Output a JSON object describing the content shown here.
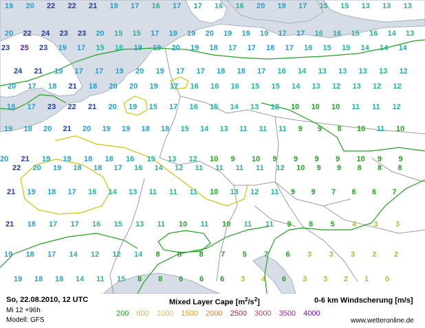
{
  "map": {
    "colors": {
      "water": "#d6dde6",
      "land": "#ffffff",
      "border": "#9b9b9b",
      "coast": "#a8b2bf",
      "cape_200": "#1fa31f",
      "cape_600": "#c8c800"
    },
    "wind_shear_values": [
      {
        "v": "19",
        "c": "#24a0c8"
      },
      {
        "v": "20",
        "c": "#24a0c8"
      },
      {
        "v": "22",
        "c": "#1e3ca8"
      },
      {
        "v": "22",
        "c": "#1e3ca8"
      },
      {
        "v": "21",
        "c": "#1e3ca8"
      },
      {
        "v": "19",
        "c": "#24a0c8"
      },
      {
        "v": "17",
        "c": "#24a0c8"
      },
      {
        "v": "16",
        "c": "#22b4a0"
      },
      {
        "v": "17",
        "c": "#24a0c8"
      },
      {
        "v": "17",
        "c": "#24a0c8"
      },
      {
        "v": "16",
        "c": "#22b4a0"
      },
      {
        "v": "16",
        "c": "#22b4a0"
      },
      {
        "v": "20",
        "c": "#24a0c8"
      },
      {
        "v": "19",
        "c": "#24a0c8"
      },
      {
        "v": "17",
        "c": "#24a0c8"
      },
      {
        "v": "15",
        "c": "#22b4a0"
      },
      {
        "v": "15",
        "c": "#22b4a0"
      },
      {
        "v": "13",
        "c": "#22b4a0"
      },
      {
        "v": "13",
        "c": "#22b4a0"
      },
      {
        "v": "13",
        "c": "#22b4a0"
      },
      {
        "v": "20",
        "c": "#24a0c8"
      },
      {
        "v": "22",
        "c": "#1e3ca8"
      },
      {
        "v": "24",
        "c": "#1e3ca8"
      },
      {
        "v": "23",
        "c": "#1e3ca8"
      },
      {
        "v": "23",
        "c": "#1e3ca8"
      },
      {
        "v": "20",
        "c": "#24a0c8"
      },
      {
        "v": "15",
        "c": "#22b4a0"
      },
      {
        "v": "15",
        "c": "#22b4a0"
      },
      {
        "v": "17",
        "c": "#24a0c8"
      },
      {
        "v": "19",
        "c": "#24a0c8"
      },
      {
        "v": "19",
        "c": "#24a0c8"
      },
      {
        "v": "20",
        "c": "#24a0c8"
      },
      {
        "v": "19",
        "c": "#24a0c8"
      },
      {
        "v": "19",
        "c": "#24a0c8"
      },
      {
        "v": "19",
        "c": "#24a0c8"
      },
      {
        "v": "17",
        "c": "#24a0c8"
      },
      {
        "v": "17",
        "c": "#24a0c8"
      },
      {
        "v": "16",
        "c": "#22b4a0"
      },
      {
        "v": "16",
        "c": "#22b4a0"
      },
      {
        "v": "15",
        "c": "#22b4a0"
      },
      {
        "v": "16",
        "c": "#22b4a0"
      },
      {
        "v": "14",
        "c": "#22b4a0"
      },
      {
        "v": "13",
        "c": "#22b4a0"
      },
      {
        "v": "23",
        "c": "#1e3ca8"
      },
      {
        "v": "25",
        "c": "#6a1f8a"
      },
      {
        "v": "23",
        "c": "#1e3ca8"
      },
      {
        "v": "19",
        "c": "#24a0c8"
      },
      {
        "v": "17",
        "c": "#24a0c8"
      },
      {
        "v": "15",
        "c": "#22b4a0"
      },
      {
        "v": "16",
        "c": "#22b4a0"
      },
      {
        "v": "19",
        "c": "#24a0c8"
      },
      {
        "v": "19",
        "c": "#24a0c8"
      },
      {
        "v": "20",
        "c": "#24a0c8"
      },
      {
        "v": "19",
        "c": "#24a0c8"
      },
      {
        "v": "18",
        "c": "#24a0c8"
      },
      {
        "v": "17",
        "c": "#24a0c8"
      },
      {
        "v": "17",
        "c": "#24a0c8"
      },
      {
        "v": "18",
        "c": "#24a0c8"
      },
      {
        "v": "17",
        "c": "#24a0c8"
      },
      {
        "v": "16",
        "c": "#22b4a0"
      },
      {
        "v": "15",
        "c": "#22b4a0"
      },
      {
        "v": "15",
        "c": "#22b4a0"
      },
      {
        "v": "14",
        "c": "#22b4a0"
      },
      {
        "v": "14",
        "c": "#22b4a0"
      },
      {
        "v": "14",
        "c": "#22b4a0"
      },
      {
        "v": "24",
        "c": "#1e3ca8"
      },
      {
        "v": "21",
        "c": "#1e3ca8"
      },
      {
        "v": "19",
        "c": "#24a0c8"
      },
      {
        "v": "17",
        "c": "#24a0c8"
      },
      {
        "v": "17",
        "c": "#24a0c8"
      },
      {
        "v": "19",
        "c": "#24a0c8"
      },
      {
        "v": "20",
        "c": "#24a0c8"
      },
      {
        "v": "19",
        "c": "#24a0c8"
      },
      {
        "v": "17",
        "c": "#24a0c8"
      },
      {
        "v": "17",
        "c": "#24a0c8"
      },
      {
        "v": "18",
        "c": "#24a0c8"
      },
      {
        "v": "18",
        "c": "#24a0c8"
      },
      {
        "v": "17",
        "c": "#24a0c8"
      },
      {
        "v": "16",
        "c": "#22b4a0"
      },
      {
        "v": "14",
        "c": "#22b4a0"
      },
      {
        "v": "13",
        "c": "#22b4a0"
      },
      {
        "v": "13",
        "c": "#22b4a0"
      },
      {
        "v": "13",
        "c": "#22b4a0"
      },
      {
        "v": "13",
        "c": "#22b4a0"
      },
      {
        "v": "12",
        "c": "#22b4a0"
      },
      {
        "v": "20",
        "c": "#24a0c8"
      },
      {
        "v": "17",
        "c": "#24a0c8"
      },
      {
        "v": "18",
        "c": "#24a0c8"
      },
      {
        "v": "21",
        "c": "#1e3ca8"
      },
      {
        "v": "18",
        "c": "#24a0c8"
      },
      {
        "v": "20",
        "c": "#24a0c8"
      },
      {
        "v": "20",
        "c": "#24a0c8"
      },
      {
        "v": "19",
        "c": "#24a0c8"
      },
      {
        "v": "17",
        "c": "#24a0c8"
      },
      {
        "v": "16",
        "c": "#22b4a0"
      },
      {
        "v": "16",
        "c": "#22b4a0"
      },
      {
        "v": "16",
        "c": "#22b4a0"
      },
      {
        "v": "15",
        "c": "#22b4a0"
      },
      {
        "v": "15",
        "c": "#22b4a0"
      },
      {
        "v": "14",
        "c": "#22b4a0"
      },
      {
        "v": "13",
        "c": "#22b4a0"
      },
      {
        "v": "12",
        "c": "#22b4a0"
      },
      {
        "v": "13",
        "c": "#22b4a0"
      },
      {
        "v": "12",
        "c": "#22b4a0"
      },
      {
        "v": "12",
        "c": "#22b4a0"
      },
      {
        "v": "18",
        "c": "#24a0c8"
      },
      {
        "v": "17",
        "c": "#24a0c8"
      },
      {
        "v": "23",
        "c": "#1e3ca8"
      },
      {
        "v": "22",
        "c": "#1e3ca8"
      },
      {
        "v": "21",
        "c": "#1e3ca8"
      },
      {
        "v": "20",
        "c": "#24a0c8"
      },
      {
        "v": "19",
        "c": "#24a0c8"
      },
      {
        "v": "15",
        "c": "#22b4a0"
      },
      {
        "v": "17",
        "c": "#24a0c8"
      },
      {
        "v": "16",
        "c": "#22b4a0"
      },
      {
        "v": "15",
        "c": "#22b4a0"
      },
      {
        "v": "14",
        "c": "#22b4a0"
      },
      {
        "v": "13",
        "c": "#22b4a0"
      },
      {
        "v": "12",
        "c": "#22b4a0"
      },
      {
        "v": "10",
        "c": "#1fa51f"
      },
      {
        "v": "10",
        "c": "#1fa51f"
      },
      {
        "v": "10",
        "c": "#1fa51f"
      },
      {
        "v": "11",
        "c": "#22b4a0"
      },
      {
        "v": "11",
        "c": "#22b4a0"
      },
      {
        "v": "12",
        "c": "#22b4a0"
      },
      {
        "v": "19",
        "c": "#24a0c8"
      },
      {
        "v": "18",
        "c": "#24a0c8"
      },
      {
        "v": "20",
        "c": "#24a0c8"
      },
      {
        "v": "21",
        "c": "#1e3ca8"
      },
      {
        "v": "20",
        "c": "#24a0c8"
      },
      {
        "v": "19",
        "c": "#24a0c8"
      },
      {
        "v": "19",
        "c": "#24a0c8"
      },
      {
        "v": "18",
        "c": "#24a0c8"
      },
      {
        "v": "18",
        "c": "#24a0c8"
      },
      {
        "v": "15",
        "c": "#22b4a0"
      },
      {
        "v": "14",
        "c": "#22b4a0"
      },
      {
        "v": "13",
        "c": "#22b4a0"
      },
      {
        "v": "11",
        "c": "#22b4a0"
      },
      {
        "v": "11",
        "c": "#22b4a0"
      },
      {
        "v": "11",
        "c": "#22b4a0"
      },
      {
        "v": "9",
        "c": "#1fa51f"
      },
      {
        "v": "9",
        "c": "#1fa51f"
      },
      {
        "v": "8",
        "c": "#1fa51f"
      },
      {
        "v": "10",
        "c": "#1fa51f"
      },
      {
        "v": "11",
        "c": "#22b4a0"
      },
      {
        "v": "10",
        "c": "#1fa51f"
      },
      {
        "v": "20",
        "c": "#24a0c8"
      },
      {
        "v": "21",
        "c": "#1e3ca8"
      },
      {
        "v": "19",
        "c": "#24a0c8"
      },
      {
        "v": "19",
        "c": "#24a0c8"
      },
      {
        "v": "18",
        "c": "#24a0c8"
      },
      {
        "v": "18",
        "c": "#24a0c8"
      },
      {
        "v": "16",
        "c": "#22b4a0"
      },
      {
        "v": "15",
        "c": "#22b4a0"
      },
      {
        "v": "13",
        "c": "#22b4a0"
      },
      {
        "v": "12",
        "c": "#22b4a0"
      },
      {
        "v": "10",
        "c": "#1fa51f"
      },
      {
        "v": "9",
        "c": "#1fa51f"
      },
      {
        "v": "10",
        "c": "#1fa51f"
      },
      {
        "v": "9",
        "c": "#1fa51f"
      },
      {
        "v": "9",
        "c": "#1fa51f"
      },
      {
        "v": "9",
        "c": "#1fa51f"
      },
      {
        "v": "9",
        "c": "#1fa51f"
      },
      {
        "v": "10",
        "c": "#1fa51f"
      },
      {
        "v": "9",
        "c": "#1fa51f"
      },
      {
        "v": "9",
        "c": "#1fa51f"
      },
      {
        "v": "22",
        "c": "#1e3ca8"
      },
      {
        "v": "20",
        "c": "#24a0c8"
      },
      {
        "v": "19",
        "c": "#24a0c8"
      },
      {
        "v": "18",
        "c": "#24a0c8"
      },
      {
        "v": "18",
        "c": "#24a0c8"
      },
      {
        "v": "17",
        "c": "#24a0c8"
      },
      {
        "v": "16",
        "c": "#22b4a0"
      },
      {
        "v": "14",
        "c": "#22b4a0"
      },
      {
        "v": "12",
        "c": "#22b4a0"
      },
      {
        "v": "11",
        "c": "#22b4a0"
      },
      {
        "v": "11",
        "c": "#22b4a0"
      },
      {
        "v": "11",
        "c": "#22b4a0"
      },
      {
        "v": "11",
        "c": "#22b4a0"
      },
      {
        "v": "12",
        "c": "#22b4a0"
      },
      {
        "v": "10",
        "c": "#1fa51f"
      },
      {
        "v": "9",
        "c": "#1fa51f"
      },
      {
        "v": "9",
        "c": "#1fa51f"
      },
      {
        "v": "8",
        "c": "#1fa51f"
      },
      {
        "v": "8",
        "c": "#1fa51f"
      },
      {
        "v": "8",
        "c": "#1fa51f"
      },
      {
        "v": "21",
        "c": "#1e3ca8"
      },
      {
        "v": "19",
        "c": "#24a0c8"
      },
      {
        "v": "18",
        "c": "#24a0c8"
      },
      {
        "v": "17",
        "c": "#24a0c8"
      },
      {
        "v": "16",
        "c": "#22b4a0"
      },
      {
        "v": "14",
        "c": "#22b4a0"
      },
      {
        "v": "13",
        "c": "#22b4a0"
      },
      {
        "v": "11",
        "c": "#22b4a0"
      },
      {
        "v": "11",
        "c": "#22b4a0"
      },
      {
        "v": "11",
        "c": "#22b4a0"
      },
      {
        "v": "10",
        "c": "#1fa51f"
      },
      {
        "v": "13",
        "c": "#22b4a0"
      },
      {
        "v": "12",
        "c": "#22b4a0"
      },
      {
        "v": "11",
        "c": "#22b4a0"
      },
      {
        "v": "9",
        "c": "#1fa51f"
      },
      {
        "v": "9",
        "c": "#1fa51f"
      },
      {
        "v": "7",
        "c": "#1fa51f"
      },
      {
        "v": "6",
        "c": "#1fa51f"
      },
      {
        "v": "6",
        "c": "#1fa51f"
      },
      {
        "v": "7",
        "c": "#1fa51f"
      },
      {
        "v": "21",
        "c": "#1e3ca8"
      },
      {
        "v": "18",
        "c": "#24a0c8"
      },
      {
        "v": "17",
        "c": "#24a0c8"
      },
      {
        "v": "17",
        "c": "#24a0c8"
      },
      {
        "v": "16",
        "c": "#22b4a0"
      },
      {
        "v": "15",
        "c": "#22b4a0"
      },
      {
        "v": "13",
        "c": "#22b4a0"
      },
      {
        "v": "11",
        "c": "#22b4a0"
      },
      {
        "v": "10",
        "c": "#1fa51f"
      },
      {
        "v": "11",
        "c": "#22b4a0"
      },
      {
        "v": "10",
        "c": "#1fa51f"
      },
      {
        "v": "11",
        "c": "#22b4a0"
      },
      {
        "v": "11",
        "c": "#22b4a0"
      },
      {
        "v": "9",
        "c": "#1fa51f"
      },
      {
        "v": "8",
        "c": "#1fa51f"
      },
      {
        "v": "5",
        "c": "#1fa51f"
      },
      {
        "v": "4",
        "c": "#b0c020"
      },
      {
        "v": "3",
        "c": "#b0c020"
      },
      {
        "v": "3",
        "c": "#b0c020"
      },
      {
        "v": "19",
        "c": "#24a0c8"
      },
      {
        "v": "18",
        "c": "#24a0c8"
      },
      {
        "v": "17",
        "c": "#24a0c8"
      },
      {
        "v": "14",
        "c": "#22b4a0"
      },
      {
        "v": "12",
        "c": "#22b4a0"
      },
      {
        "v": "12",
        "c": "#22b4a0"
      },
      {
        "v": "14",
        "c": "#22b4a0"
      },
      {
        "v": "8",
        "c": "#1fa51f"
      },
      {
        "v": "8",
        "c": "#1fa51f"
      },
      {
        "v": "8",
        "c": "#1fa51f"
      },
      {
        "v": "7",
        "c": "#1fa51f"
      },
      {
        "v": "5",
        "c": "#1fa51f"
      },
      {
        "v": "7",
        "c": "#1fa51f"
      },
      {
        "v": "6",
        "c": "#1fa51f"
      },
      {
        "v": "3",
        "c": "#b0c020"
      },
      {
        "v": "3",
        "c": "#b0c020"
      },
      {
        "v": "3",
        "c": "#b0c020"
      },
      {
        "v": "2",
        "c": "#b0c020"
      },
      {
        "v": "2",
        "c": "#b0c020"
      },
      {
        "v": "19",
        "c": "#24a0c8"
      },
      {
        "v": "18",
        "c": "#24a0c8"
      },
      {
        "v": "18",
        "c": "#24a0c8"
      },
      {
        "v": "14",
        "c": "#22b4a0"
      },
      {
        "v": "11",
        "c": "#22b4a0"
      },
      {
        "v": "15",
        "c": "#22b4a0"
      },
      {
        "v": "8",
        "c": "#1fa51f"
      },
      {
        "v": "8",
        "c": "#1fa51f"
      },
      {
        "v": "6",
        "c": "#1fa51f"
      },
      {
        "v": "6",
        "c": "#1fa51f"
      },
      {
        "v": "6",
        "c": "#1fa51f"
      },
      {
        "v": "3",
        "c": "#b0c020"
      },
      {
        "v": "4",
        "c": "#b0c020"
      },
      {
        "v": "6",
        "c": "#1fa51f"
      },
      {
        "v": "3",
        "c": "#b0c020"
      },
      {
        "v": "3",
        "c": "#b0c020"
      },
      {
        "v": "2",
        "c": "#b0c020"
      },
      {
        "v": "1",
        "c": "#b0c020"
      },
      {
        "v": "0",
        "c": "#b0c020"
      }
    ]
  },
  "footer": {
    "date": "So, 22.08.2010, 12 UTC",
    "run": "Mi 12 +96h",
    "model": "Modell: GFS",
    "cape_title_text": "Mixed Layer Cape [m",
    "cape_title_sup": "2",
    "cape_title_mid": "/s",
    "cape_title_sup2": "2",
    "cape_title_end": "]",
    "wind_title": "0-6 km Windscherung [m/s]",
    "credit": "www.wetteronline.de",
    "legend": [
      {
        "label": "200",
        "color": "#1fa31f"
      },
      {
        "label": "600",
        "color": "#c8c800"
      },
      {
        "label": "1000",
        "color": "#e0c040"
      },
      {
        "label": "1500",
        "color": "#e0a030"
      },
      {
        "label": "2000",
        "color": "#e08040"
      },
      {
        "label": "2500",
        "color": "#d01818"
      },
      {
        "label": "3000",
        "color": "#d03070"
      },
      {
        "label": "3500",
        "color": "#a020a0"
      },
      {
        "label": "4000",
        "color": "#7010a0"
      }
    ]
  }
}
